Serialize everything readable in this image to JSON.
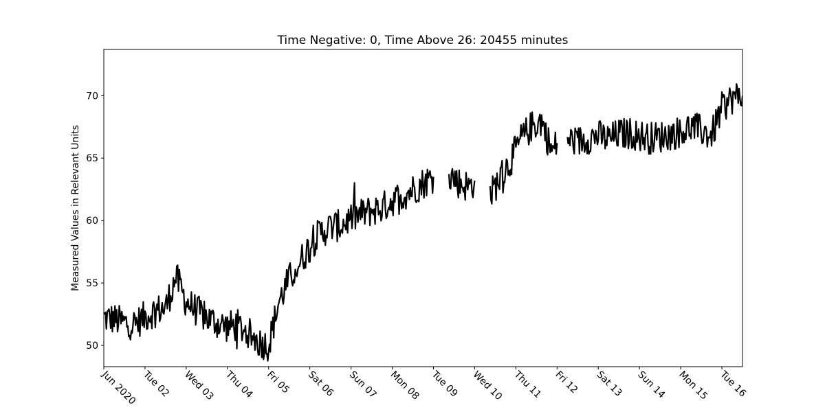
{
  "chart_data": {
    "type": "line",
    "title": "Time Negative: 0, Time Above 26: 20455 minutes",
    "xlabel": "",
    "ylabel": "Measured Values in Relevant Units",
    "ylim": [
      48.3,
      73.7
    ],
    "xlim": [
      "2020-06-01",
      "2020-06-16 12:00"
    ],
    "y_ticks": [
      50,
      55,
      60,
      65,
      70
    ],
    "x_ticks": [
      {
        "date": "2020-06-01",
        "label": "Jun 2020"
      },
      {
        "date": "2020-06-02",
        "label": "Tue 02"
      },
      {
        "date": "2020-06-03",
        "label": "Wed 03"
      },
      {
        "date": "2020-06-04",
        "label": "Thu 04"
      },
      {
        "date": "2020-06-05",
        "label": "Fri 05"
      },
      {
        "date": "2020-06-06",
        "label": "Sat 06"
      },
      {
        "date": "2020-06-07",
        "label": "Sun 07"
      },
      {
        "date": "2020-06-08",
        "label": "Mon 08"
      },
      {
        "date": "2020-06-09",
        "label": "Tue 09"
      },
      {
        "date": "2020-06-10",
        "label": "Wed 10"
      },
      {
        "date": "2020-06-11",
        "label": "Thu 11"
      },
      {
        "date": "2020-06-12",
        "label": "Fri 12"
      },
      {
        "date": "2020-06-13",
        "label": "Sat 13"
      },
      {
        "date": "2020-06-14",
        "label": "Sun 14"
      },
      {
        "date": "2020-06-15",
        "label": "Mon 15"
      },
      {
        "date": "2020-06-16",
        "label": "Tue 16"
      }
    ],
    "grid": false,
    "line_color": "#000000",
    "series": [
      {
        "segments": [
          {
            "x": [
              "2020-06-01 00:00",
              "2020-06-01 06:00",
              "2020-06-01 12:00",
              "2020-06-01 18:00",
              "2020-06-02 00:00",
              "2020-06-02 06:00",
              "2020-06-02 12:00",
              "2020-06-02 18:00",
              "2020-06-03 00:00",
              "2020-06-03 06:00",
              "2020-06-03 12:00",
              "2020-06-03 18:00",
              "2020-06-04 00:00",
              "2020-06-04 06:00",
              "2020-06-04 12:00",
              "2020-06-04 18:00",
              "2020-06-05 00:00",
              "2020-06-05 06:00",
              "2020-06-05 12:00",
              "2020-06-05 18:00",
              "2020-06-06 00:00",
              "2020-06-06 06:00",
              "2020-06-06 12:00",
              "2020-06-06 18:00",
              "2020-06-07 00:00",
              "2020-06-07 06:00",
              "2020-06-07 12:00",
              "2020-06-07 18:00",
              "2020-06-08 00:00",
              "2020-06-08 06:00",
              "2020-06-08 12:00",
              "2020-06-08 18:00",
              "2020-06-09 00:00"
            ],
            "y": [
              52.2,
              52.1,
              51.8,
              51.7,
              52.3,
              52.8,
              53.0,
              55.5,
              53.5,
              52.8,
              52.2,
              51.8,
              51.5,
              51.6,
              51.0,
              50.3,
              50.0,
              53.5,
              55.3,
              56.6,
              58.0,
              59.0,
              59.5,
              59.6,
              60.2,
              60.5,
              60.8,
              61.0,
              61.6,
              62.0,
              62.5,
              63.0,
              63.5
            ]
          },
          {
            "x": [
              "2020-06-09 09:00",
              "2020-06-09 15:00",
              "2020-06-09 21:00",
              "2020-06-10 00:00"
            ],
            "y": [
              63.8,
              63.0,
              62.7,
              63.2
            ]
          },
          {
            "x": [
              "2020-06-10 09:00",
              "2020-06-10 15:00",
              "2020-06-10 21:00",
              "2020-06-11 03:00",
              "2020-06-11 09:00",
              "2020-06-11 15:00",
              "2020-06-11 21:00",
              "2020-06-12 00:00"
            ],
            "y": [
              62.0,
              63.5,
              64.8,
              66.5,
              67.5,
              68.0,
              65.5,
              66.2
            ]
          },
          {
            "x": [
              "2020-06-12 06:00",
              "2020-06-12 12:00",
              "2020-06-12 18:00",
              "2020-06-13 00:00",
              "2020-06-13 06:00",
              "2020-06-13 12:00",
              "2020-06-13 18:00",
              "2020-06-14 00:00",
              "2020-06-14 06:00",
              "2020-06-14 12:00",
              "2020-06-14 18:00",
              "2020-06-15 00:00",
              "2020-06-15 06:00",
              "2020-06-15 12:00",
              "2020-06-15 18:00",
              "2020-06-16 00:00",
              "2020-06-16 06:00",
              "2020-06-16 12:00"
            ],
            "y": [
              66.5,
              66.3,
              66.6,
              66.8,
              66.5,
              66.9,
              67.0,
              66.8,
              66.6,
              66.7,
              66.9,
              67.1,
              67.5,
              67.2,
              66.8,
              69.0,
              69.8,
              70.0
            ]
          }
        ]
      }
    ]
  }
}
